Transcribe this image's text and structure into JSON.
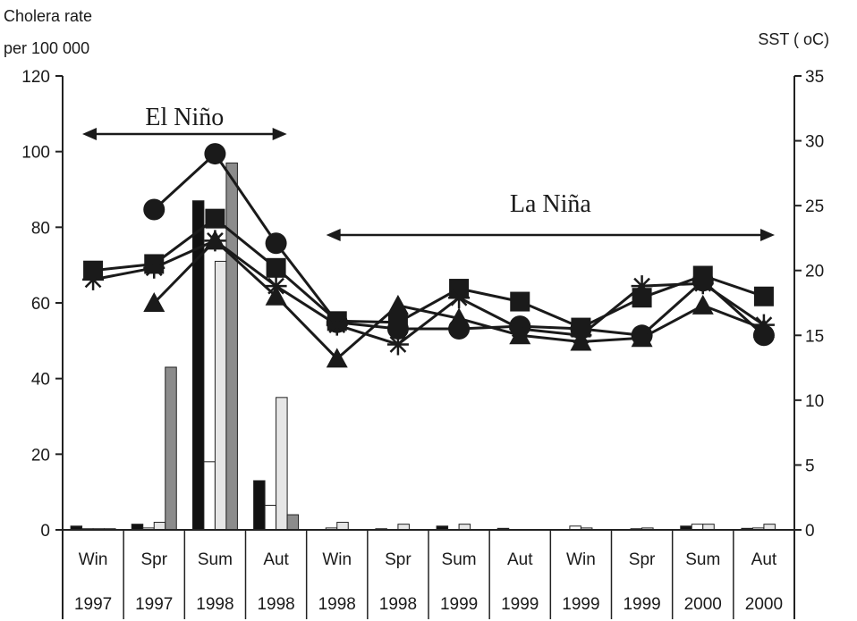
{
  "chart_data": {
    "type": "bar",
    "left_axis": {
      "label_line1": "Cholera rate",
      "label_line2": "per 100 000",
      "ylim": [
        0,
        120
      ],
      "ticks": [
        0,
        20,
        40,
        60,
        80,
        100,
        120
      ]
    },
    "right_axis": {
      "label": "SST ( oC)",
      "ylim": [
        0,
        35
      ],
      "ticks": [
        0,
        5,
        10,
        15,
        20,
        25,
        30,
        35
      ]
    },
    "categories": [
      {
        "season": "Win",
        "year": "1997"
      },
      {
        "season": "Spr",
        "year": "1997"
      },
      {
        "season": "Sum",
        "year": "1998"
      },
      {
        "season": "Aut",
        "year": "1998"
      },
      {
        "season": "Win",
        "year": "1998"
      },
      {
        "season": "Spr",
        "year": "1998"
      },
      {
        "season": "Sum",
        "year": "1999"
      },
      {
        "season": "Aut",
        "year": "1999"
      },
      {
        "season": "Win",
        "year": "1999"
      },
      {
        "season": "Spr",
        "year": "1999"
      },
      {
        "season": "Sum",
        "year": "2000"
      },
      {
        "season": "Aut",
        "year": "2000"
      }
    ],
    "bar_series": [
      {
        "fill": "#111111",
        "values": [
          1,
          1.5,
          87,
          13,
          0,
          0.3,
          1,
          0.4,
          0,
          0,
          1,
          0.4
        ]
      },
      {
        "fill": "#ffffff",
        "values": [
          0.3,
          0.5,
          18,
          6.5,
          0.5,
          0,
          0,
          0,
          1,
          0.3,
          1.5,
          0.5
        ]
      },
      {
        "fill": "#e6e6e6",
        "values": [
          0.3,
          2,
          71,
          35,
          2,
          1.5,
          1.5,
          0,
          0.5,
          0.5,
          1.5,
          1.5
        ]
      },
      {
        "fill": "#8c8c8c",
        "values": [
          0.3,
          43,
          97,
          4,
          0,
          0,
          0,
          0,
          0,
          0,
          0,
          0
        ]
      }
    ],
    "line_series": [
      {
        "marker": "circle",
        "values": [
          null,
          24.7,
          29,
          22.1,
          16,
          15.5,
          15.5,
          15.7,
          15.5,
          15,
          19.2,
          15
        ]
      },
      {
        "marker": "square",
        "values": [
          20,
          20.5,
          24,
          20.2,
          16.1,
          16,
          18.6,
          17.6,
          15.6,
          17.9,
          19.6,
          18
        ]
      },
      {
        "marker": "triangle",
        "values": [
          null,
          17.5,
          22.3,
          18,
          13.2,
          17.3,
          16.3,
          15,
          14.5,
          14.8,
          17.3,
          15.5
        ]
      },
      {
        "marker": "star",
        "values": [
          19.3,
          20.2,
          22.3,
          18.8,
          15.8,
          14.3,
          17.9,
          15.5,
          15,
          18.8,
          19,
          15.8
        ]
      }
    ],
    "annotations": [
      {
        "text": "El Niño",
        "from_index": 0,
        "to_index": 3
      },
      {
        "text": "La Niña",
        "from_index": 4,
        "to_index": 11
      }
    ]
  }
}
